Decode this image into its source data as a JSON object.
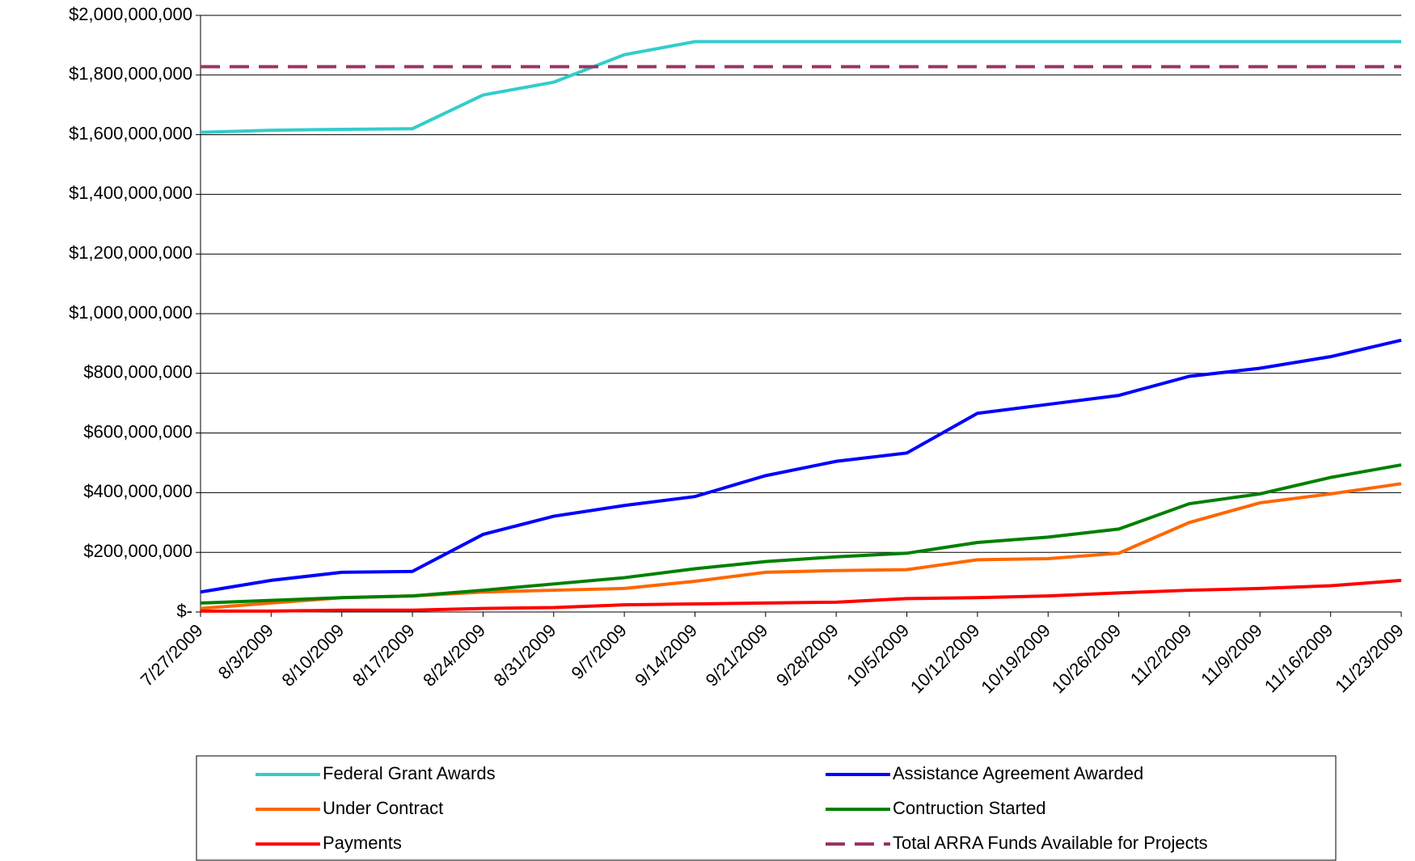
{
  "chart_data": {
    "type": "line",
    "categories": [
      "7/27/2009",
      "8/3/2009",
      "8/10/2009",
      "8/17/2009",
      "8/24/2009",
      "8/31/2009",
      "9/7/2009",
      "9/14/2009",
      "9/21/2009",
      "9/28/2009",
      "10/5/2009",
      "10/12/2009",
      "10/19/2009",
      "10/26/2009",
      "11/2/2009",
      "11/9/2009",
      "11/16/2009",
      "11/23/2009"
    ],
    "series": [
      {
        "name": "Federal Grant Awards",
        "color": "#33cccc",
        "line_style": "solid",
        "values": [
          1608000000,
          1615000000,
          1618000000,
          1620000000,
          1733000000,
          1776000000,
          1868000000,
          1912000000,
          1912000000,
          1912000000,
          1912000000,
          1912000000,
          1912000000,
          1912000000,
          1912000000,
          1912000000,
          1912000000,
          1912000000
        ]
      },
      {
        "name": "Assistance Agreement Awarded",
        "color": "#0000ff",
        "line_style": "solid",
        "values": [
          67000000,
          106000000,
          133000000,
          136000000,
          260000000,
          321000000,
          357000000,
          387000000,
          457000000,
          505000000,
          533000000,
          666000000,
          696000000,
          726000000,
          790000000,
          817000000,
          856000000,
          911000000
        ]
      },
      {
        "name": "Under Contract",
        "color": "#ff6600",
        "line_style": "solid",
        "values": [
          12000000,
          30000000,
          48000000,
          54000000,
          67000000,
          73000000,
          79000000,
          103000000,
          133000000,
          139000000,
          142000000,
          175000000,
          179000000,
          197000000,
          300000000,
          366000000,
          396000000,
          430000000
        ]
      },
      {
        "name": "Contruction Started",
        "color": "#008000",
        "line_style": "solid",
        "values": [
          30000000,
          39000000,
          48000000,
          54000000,
          73000000,
          94000000,
          115000000,
          145000000,
          169000000,
          185000000,
          197000000,
          233000000,
          251000000,
          278000000,
          363000000,
          396000000,
          451000000,
          493000000
        ]
      },
      {
        "name": "Payments",
        "color": "#ff0000",
        "line_style": "solid",
        "values": [
          3000000,
          3000000,
          6000000,
          6000000,
          12000000,
          15000000,
          24000000,
          27000000,
          30000000,
          33000000,
          45000000,
          48000000,
          54000000,
          64000000,
          73000000,
          79000000,
          88000000,
          106000000
        ]
      },
      {
        "name": "Total ARRA Funds Available for Projects",
        "color": "#993366",
        "line_style": "dashed",
        "values": [
          1828000000,
          1828000000,
          1828000000,
          1828000000,
          1828000000,
          1828000000,
          1828000000,
          1828000000,
          1828000000,
          1828000000,
          1828000000,
          1828000000,
          1828000000,
          1828000000,
          1828000000,
          1828000000,
          1828000000,
          1828000000
        ]
      }
    ],
    "ylim": [
      0,
      2000000000
    ],
    "yticks": [
      {
        "value": 0,
        "label": "$-"
      },
      {
        "value": 200000000,
        "label": "$200,000,000"
      },
      {
        "value": 400000000,
        "label": "$400,000,000"
      },
      {
        "value": 600000000,
        "label": "$600,000,000"
      },
      {
        "value": 800000000,
        "label": "$800,000,000"
      },
      {
        "value": 1000000000,
        "label": "$1,000,000,000"
      },
      {
        "value": 1200000000,
        "label": "$1,200,000,000"
      },
      {
        "value": 1400000000,
        "label": "$1,400,000,000"
      },
      {
        "value": 1600000000,
        "label": "$1,600,000,000"
      },
      {
        "value": 1800000000,
        "label": "$1,800,000,000"
      },
      {
        "value": 2000000000,
        "label": "$2,000,000,000"
      }
    ],
    "grid": true,
    "legend": "bottom"
  }
}
